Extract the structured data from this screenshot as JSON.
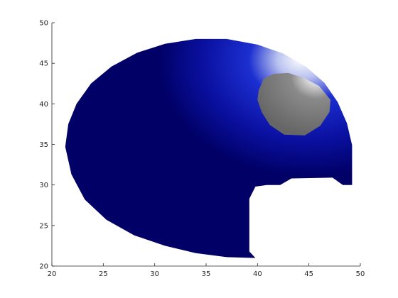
{
  "chart_data": {
    "type": "surface",
    "title": "",
    "xlabel": "",
    "ylabel": "",
    "xlim": [
      20,
      50
    ],
    "ylim": [
      20,
      50
    ],
    "xticks": [
      20,
      25,
      30,
      35,
      40,
      45,
      50
    ],
    "yticks": [
      20,
      25,
      30,
      35,
      40,
      45,
      50
    ],
    "grid": false,
    "box": false,
    "shapes": [
      {
        "name": "blue-surface",
        "color": "#000066",
        "highlight_color": "#ffffff",
        "outline": [
          [
            21.3,
            34.7
          ],
          [
            21.6,
            37.5
          ],
          [
            22.4,
            40.0
          ],
          [
            23.8,
            42.5
          ],
          [
            25.8,
            44.6
          ],
          [
            28.3,
            46.3
          ],
          [
            31.0,
            47.4
          ],
          [
            34.0,
            48.0
          ],
          [
            37.0,
            48.0
          ],
          [
            40.0,
            47.3
          ],
          [
            42.5,
            46.2
          ],
          [
            44.7,
            44.6
          ],
          [
            46.5,
            42.6
          ],
          [
            47.8,
            40.2
          ],
          [
            48.7,
            37.6
          ],
          [
            49.2,
            34.9
          ],
          [
            49.2,
            30.0
          ],
          [
            48.3,
            30.0
          ],
          [
            47.3,
            30.9
          ],
          [
            43.3,
            30.8
          ],
          [
            42.2,
            30.0
          ],
          [
            40.9,
            30.0
          ],
          [
            39.8,
            29.8
          ],
          [
            39.2,
            28.3
          ],
          [
            39.2,
            21.8
          ],
          [
            39.8,
            21.0
          ],
          [
            37.0,
            21.1
          ],
          [
            34.0,
            21.6
          ],
          [
            31.0,
            22.5
          ],
          [
            28.0,
            23.8
          ],
          [
            25.3,
            25.7
          ],
          [
            23.2,
            28.2
          ],
          [
            21.9,
            31.3
          ]
        ]
      },
      {
        "name": "grey-ellipsoid",
        "color": "#666666",
        "highlight_color": "#ffffff",
        "outline": [
          [
            40.1,
            41.6
          ],
          [
            40.6,
            43.1
          ],
          [
            41.6,
            43.7
          ],
          [
            43.0,
            43.8
          ],
          [
            44.5,
            43.2
          ],
          [
            46.0,
            42.2
          ],
          [
            47.1,
            40.5
          ],
          [
            47.0,
            39.0
          ],
          [
            46.1,
            37.3
          ],
          [
            44.6,
            36.1
          ],
          [
            42.6,
            36.2
          ],
          [
            41.2,
            37.4
          ],
          [
            40.4,
            39.0
          ],
          [
            40.0,
            40.5
          ]
        ]
      }
    ]
  }
}
